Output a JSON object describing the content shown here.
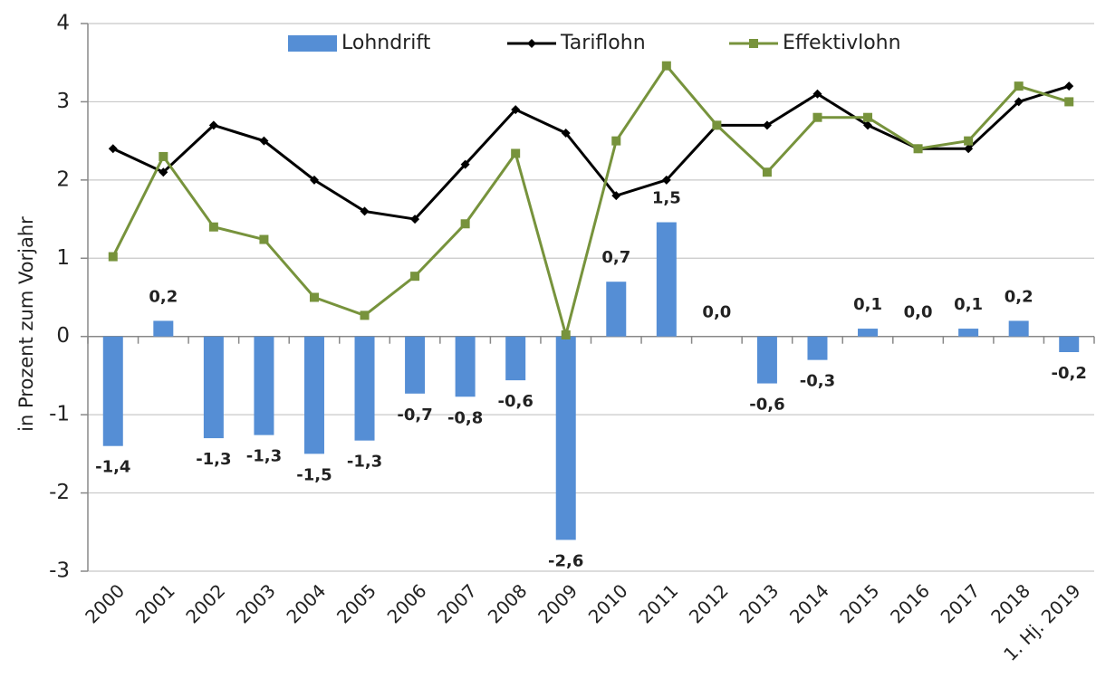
{
  "chart_data": {
    "type": "bar_line",
    "y_axis_label": "in Prozent zum Vorjahr",
    "categories": [
      "2000",
      "2001",
      "2002",
      "2003",
      "2004",
      "2005",
      "2006",
      "2007",
      "2008",
      "2009",
      "2010",
      "2011",
      "2012",
      "2013",
      "2014",
      "2015",
      "2016",
      "2017",
      "2018",
      "1. Hj. 2019"
    ],
    "series": [
      {
        "name": "Lohndrift",
        "type": "bar",
        "color": "#558ed5",
        "values": [
          -1.4,
          0.2,
          -1.3,
          -1.26,
          -1.5,
          -1.33,
          -0.73,
          -0.77,
          -0.56,
          -2.6,
          0.7,
          1.46,
          0.0,
          -0.6,
          -0.3,
          0.1,
          0.0,
          0.1,
          0.2,
          -0.2
        ],
        "value_labels": [
          "-1,4",
          "0,2",
          "-1,3",
          "-1,3",
          "-1,5",
          "-1,3",
          "-0,7",
          "-0,8",
          "-0,6",
          "-2,6",
          "0,7",
          "1,5",
          "0,0",
          "-0,6",
          "-0,3",
          "0,1",
          "0,0",
          "0,1",
          "0,2",
          "-0,2"
        ]
      },
      {
        "name": "Tariflohn",
        "type": "line",
        "marker": "diamond",
        "color": "#000000",
        "values": [
          2.4,
          2.1,
          2.7,
          2.5,
          2.0,
          1.6,
          1.5,
          2.2,
          2.9,
          2.6,
          1.8,
          2.0,
          2.7,
          2.7,
          3.1,
          2.7,
          2.4,
          2.4,
          3.0,
          3.2
        ]
      },
      {
        "name": "Effektivlohn",
        "type": "line",
        "marker": "square",
        "color": "#77933c",
        "values": [
          1.02,
          2.3,
          1.4,
          1.24,
          0.5,
          0.27,
          0.77,
          1.44,
          2.34,
          0.02,
          2.5,
          3.46,
          2.7,
          2.1,
          2.8,
          2.8,
          2.4,
          2.5,
          3.2,
          3.0
        ]
      }
    ],
    "ylim": [
      -3,
      4
    ],
    "yticks": [
      -3,
      -2,
      -1,
      0,
      1,
      2,
      3,
      4
    ],
    "grid": true,
    "legend": "top"
  }
}
